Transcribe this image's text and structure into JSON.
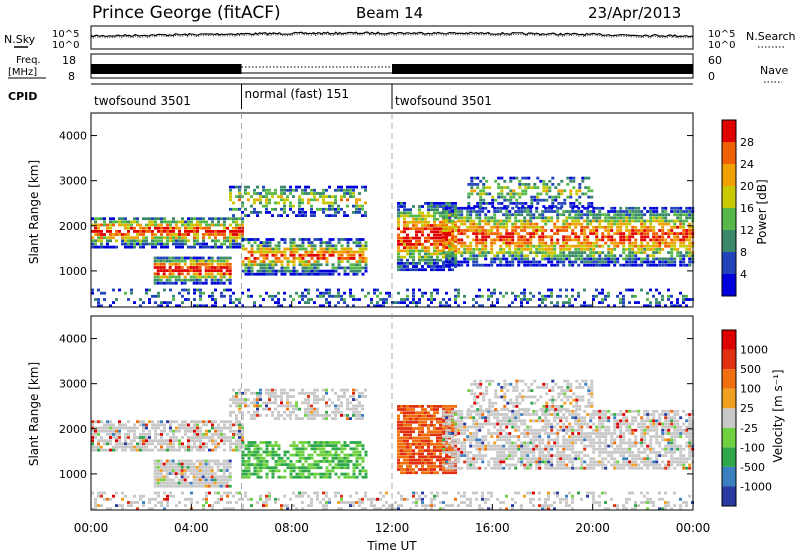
{
  "header": {
    "station": "Prince George (fitACF)",
    "beam": "Beam 14",
    "date": "23/Apr/2013"
  },
  "top_panels": {
    "nsky_label": "N.Sky",
    "nsearch_label": "N.Search",
    "noise_ticks": [
      "10^5",
      "10^0"
    ],
    "freq_label_line1": "Freq.",
    "freq_label_line2": "[MHz]",
    "freq_ticks": [
      "18",
      "8"
    ],
    "nave_label": "Nave",
    "nave_ticks": [
      "60",
      "0"
    ],
    "cpid_label": "CPID",
    "cpid_segments": [
      {
        "label": "twofsound 3501",
        "start_hour": 0,
        "end_hour": 6
      },
      {
        "label": "normal (fast) 151",
        "start_hour": 6,
        "end_hour": 12
      },
      {
        "label": "twofsound 3501",
        "start_hour": 12,
        "end_hour": 24
      }
    ]
  },
  "chart_data": [
    {
      "type": "heatmap",
      "name": "power",
      "ylabel": "Slant Range [km]",
      "yticks": [
        1000,
        2000,
        3000,
        4000
      ],
      "ylim": [
        200,
        4500
      ],
      "xlim": [
        0,
        24
      ],
      "colorbar_label": "Power [dB]",
      "colorbar_ticks": [
        "28",
        "24",
        "20",
        "16",
        "12",
        "8",
        "4"
      ],
      "colorbar_colors": [
        "#0000dd",
        "#2244bb",
        "#3a8a6a",
        "#57b84a",
        "#c8c800",
        "#f0a000",
        "#f06000",
        "#e00000"
      ]
    },
    {
      "type": "heatmap",
      "name": "velocity",
      "ylabel": "Slant Range [km]",
      "yticks": [
        1000,
        2000,
        3000,
        4000
      ],
      "ylim": [
        200,
        4500
      ],
      "xlim": [
        0,
        24
      ],
      "colorbar_label": "Velocity [m s⁻¹]",
      "colorbar_ticks": [
        "1000",
        "500",
        "100",
        "25",
        "-25",
        "-100",
        "-500",
        "-1000"
      ],
      "colorbar_colors": [
        "#2a3aa0",
        "#3a7fbf",
        "#2ea84a",
        "#6fd040",
        "#c8c8c8",
        "#f0a020",
        "#f07010",
        "#e03010",
        "#dd0000"
      ]
    }
  ],
  "xaxis": {
    "label": "Time UT",
    "ticks": [
      "00:00",
      "04:00",
      "08:00",
      "12:00",
      "16:00",
      "20:00",
      "00:00"
    ],
    "tick_hours": [
      0,
      4,
      8,
      12,
      16,
      20,
      24
    ]
  }
}
